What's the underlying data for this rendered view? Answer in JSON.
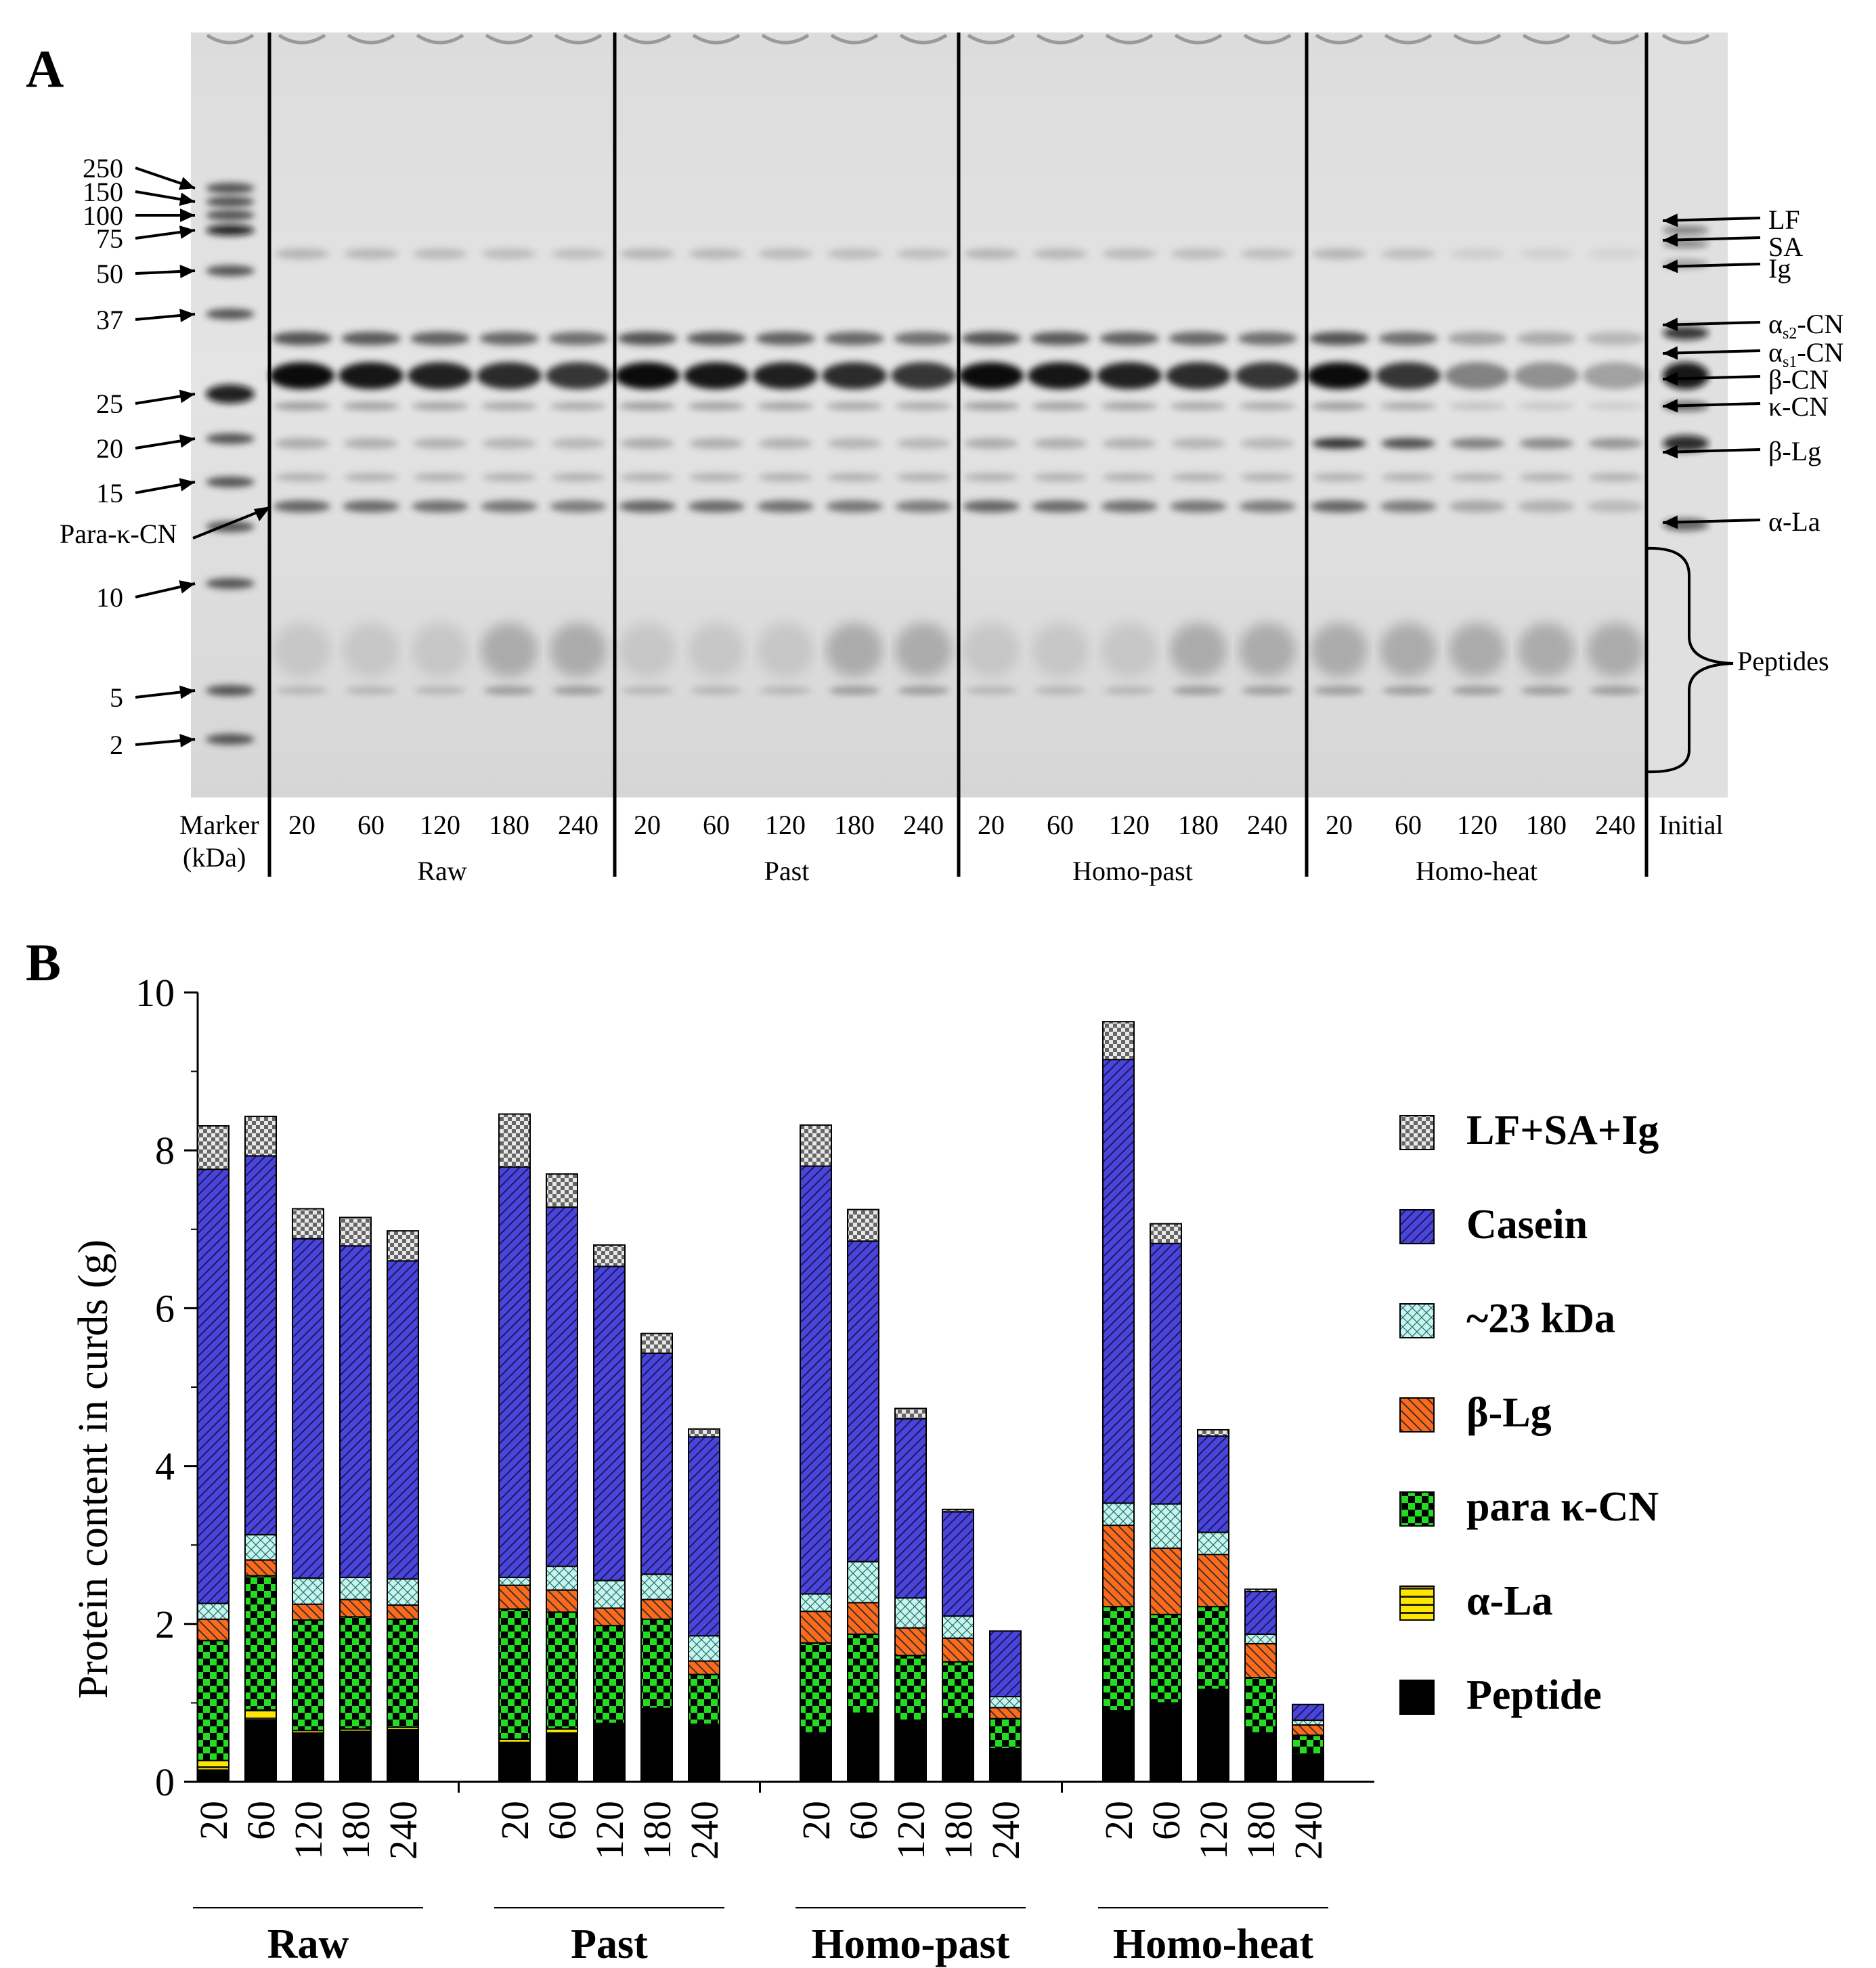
{
  "panel_a": {
    "letter": "A",
    "marker_labels": [
      "250",
      "150",
      "100",
      "75",
      "50",
      "37",
      "25",
      "20",
      "15",
      "10",
      "5",
      "2"
    ],
    "para_kcn_label": "Para-κ-CN",
    "right_labels": {
      "lf": "LF",
      "sa": "SA",
      "ig": "Ig",
      "as2_alpha": "α",
      "as2_sub": "s2",
      "as2_rest": "-CN",
      "as1_alpha": "α",
      "as1_sub": "s1",
      "as1_rest": "-CN",
      "bcn": "β-CN",
      "kcn": "κ-CN",
      "blg": "β-Lg",
      "ala": "α-La",
      "peptides": "Peptides"
    },
    "marker_lane_label": "Marker",
    "marker_lane_unit": "(kDa)",
    "initial_lane_label": "Initial",
    "lane_times": [
      "20",
      "60",
      "120",
      "180",
      "240"
    ],
    "groups": [
      "Raw",
      "Past",
      "Homo-past",
      "Homo-heat"
    ]
  },
  "panel_b": {
    "letter": "B"
  },
  "chart_data": {
    "type": "bar",
    "stacked": true,
    "title": "",
    "xlabel": "",
    "ylabel": "Protein content in curds (g)",
    "ylim": [
      0,
      10
    ],
    "yticks": [
      "0",
      "2",
      "4",
      "6",
      "8",
      "10"
    ],
    "grid": false,
    "legend_position": "right",
    "groups": [
      "Raw",
      "Past",
      "Homo-past",
      "Homo-heat"
    ],
    "categories": [
      "20",
      "60",
      "120",
      "180",
      "240"
    ],
    "series": [
      {
        "name": "Peptide",
        "color": "#000000",
        "pattern": "solid",
        "values": [
          [
            0.15,
            0.78,
            0.62,
            0.64,
            0.66
          ],
          [
            0.5,
            0.62,
            0.73,
            0.92,
            0.73
          ],
          [
            0.62,
            0.87,
            0.78,
            0.8,
            0.42
          ],
          [
            0.9,
            1.0,
            1.17,
            0.62,
            0.35
          ]
        ]
      },
      {
        "name": "α-La",
        "color": "#ffe600",
        "pattern": "hlines",
        "values": [
          [
            0.12,
            0.13,
            0.03,
            0.03,
            0.03
          ],
          [
            0.04,
            0.05,
            0.01,
            0.01,
            0.0
          ],
          [
            0.0,
            0.0,
            0.0,
            0.0,
            0.0
          ],
          [
            0.0,
            0.0,
            0.0,
            0.0,
            0.0
          ]
        ]
      },
      {
        "name": "para κ-CN",
        "color": "#22cc22",
        "pattern": "checker",
        "values": [
          [
            1.52,
            1.7,
            1.4,
            1.42,
            1.37
          ],
          [
            1.65,
            1.48,
            1.24,
            1.13,
            0.63
          ],
          [
            1.14,
            1.0,
            0.82,
            0.72,
            0.38
          ],
          [
            1.32,
            1.12,
            1.05,
            0.7,
            0.24
          ]
        ]
      },
      {
        "name": "β-Lg",
        "color": "#ff6622",
        "pattern": "diag-back",
        "values": [
          [
            0.27,
            0.2,
            0.2,
            0.22,
            0.18
          ],
          [
            0.3,
            0.28,
            0.22,
            0.25,
            0.17
          ],
          [
            0.4,
            0.4,
            0.35,
            0.3,
            0.14
          ],
          [
            1.03,
            0.84,
            0.66,
            0.43,
            0.13
          ]
        ]
      },
      {
        "name": "~23 kDa",
        "color": "#b8f0e8",
        "pattern": "crosshatch",
        "values": [
          [
            0.2,
            0.32,
            0.33,
            0.28,
            0.33
          ],
          [
            0.1,
            0.3,
            0.35,
            0.32,
            0.32
          ],
          [
            0.22,
            0.52,
            0.38,
            0.28,
            0.14
          ],
          [
            0.28,
            0.56,
            0.28,
            0.12,
            0.06
          ]
        ]
      },
      {
        "name": "Casein",
        "color": "#4a44dd",
        "pattern": "diag-fwd",
        "values": [
          [
            5.5,
            4.8,
            4.3,
            4.2,
            4.03
          ],
          [
            5.2,
            4.55,
            3.98,
            2.8,
            2.52
          ],
          [
            5.42,
            4.06,
            2.27,
            1.32,
            0.83
          ],
          [
            5.62,
            3.3,
            1.22,
            0.54,
            0.2
          ]
        ]
      },
      {
        "name": "LF+SA+Ig",
        "color": "#cccccc",
        "pattern": "checker-gray",
        "values": [
          [
            0.55,
            0.5,
            0.38,
            0.36,
            0.38
          ],
          [
            0.67,
            0.42,
            0.27,
            0.25,
            0.1
          ],
          [
            0.52,
            0.4,
            0.13,
            0.03,
            0.0
          ],
          [
            0.48,
            0.25,
            0.08,
            0.03,
            0.0
          ]
        ]
      }
    ]
  }
}
